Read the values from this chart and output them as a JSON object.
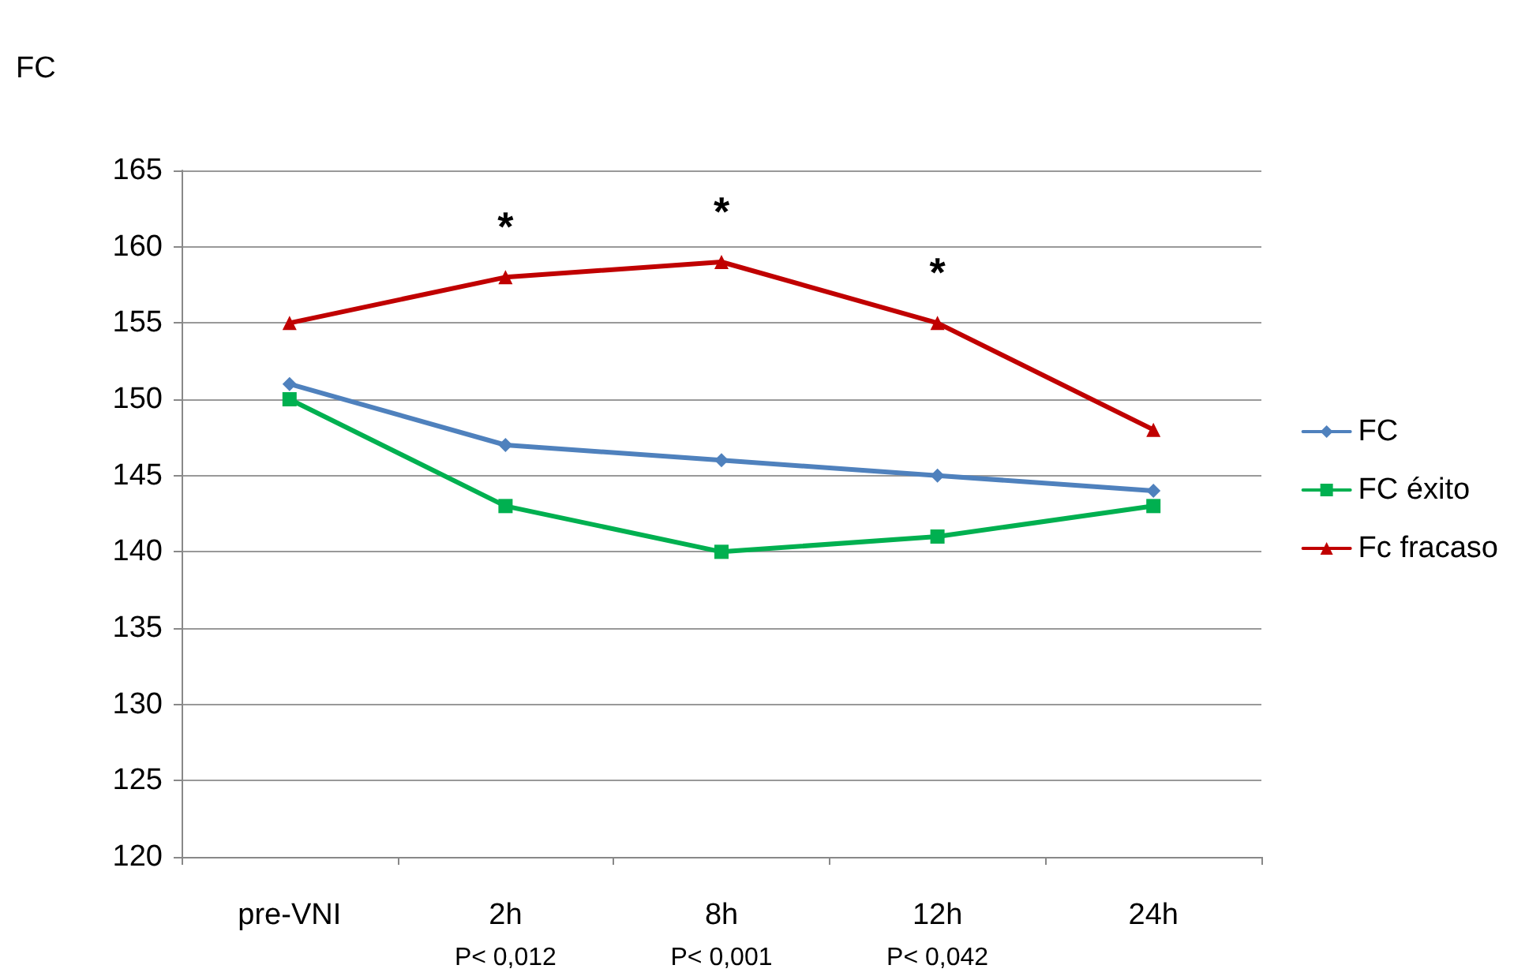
{
  "chart_data": {
    "type": "line",
    "ylabel": "FC",
    "categories": [
      "pre-VNI",
      "2h\nP< 0,012",
      "8h\nP< 0,001",
      "12h\nP< 0,042",
      "24h"
    ],
    "series": [
      {
        "name": "FC",
        "color": "#4f81bd",
        "marker": "diamond",
        "values": [
          151,
          147,
          146,
          145,
          144
        ]
      },
      {
        "name": "FC éxito",
        "color": "#00b050",
        "marker": "square",
        "values": [
          150,
          143,
          140,
          141,
          143
        ]
      },
      {
        "name": "Fc fracaso",
        "color": "#c00000",
        "marker": "triangle",
        "values": [
          155,
          158,
          159,
          155,
          148
        ]
      }
    ],
    "ylim": [
      120,
      165
    ],
    "yticks": [
      120,
      125,
      130,
      135,
      140,
      145,
      150,
      155,
      160,
      165
    ],
    "grid": "y",
    "legend": "right",
    "annotations": [
      {
        "text": "*",
        "x": "2h\nP< 0,012",
        "y": 158
      },
      {
        "text": "*",
        "x": "8h\nP< 0,001",
        "y": 159
      },
      {
        "text": "*",
        "x": "12h\nP< 0,042",
        "y": 155
      }
    ]
  }
}
